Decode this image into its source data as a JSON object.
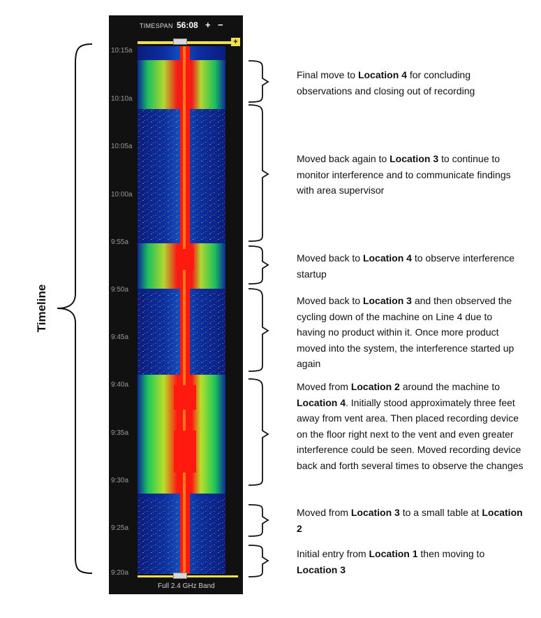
{
  "viewer": {
    "timespan_label": "TIMESPAN",
    "timespan_value": "56:08",
    "zoom_in": "+",
    "zoom_out": "−",
    "expand_marker": "+",
    "band_label": "Full 2.4 GHz Band",
    "time_ticks": [
      "10:15a",
      "10:10a",
      "10:05a",
      "10:00a",
      "9:55a",
      "9:50a",
      "9:45a",
      "9:40a",
      "9:35a",
      "9:30a",
      "9:25a",
      "9:20a"
    ]
  },
  "timeline_label": "Timeline",
  "annotations": [
    {
      "parts": [
        [
          "Final move to ",
          false
        ],
        [
          "Location 4",
          true
        ],
        [
          " for concluding observations and closing out of recording",
          false
        ]
      ]
    },
    {
      "parts": [
        [
          "Moved back again to ",
          false
        ],
        [
          "Location 3",
          true
        ],
        [
          " to continue to monitor interference and to communicate findings with area supervisor",
          false
        ]
      ]
    },
    {
      "parts": [
        [
          "Moved back to ",
          false
        ],
        [
          "Location 4",
          true
        ],
        [
          " to observe interference startup",
          false
        ]
      ]
    },
    {
      "parts": [
        [
          "Moved back to ",
          false
        ],
        [
          "Location 3",
          true
        ],
        [
          " and then observed the cycling down of the machine on Line 4 due to having no product within it. Once more product moved into the system, the interference started up again",
          false
        ]
      ]
    },
    {
      "parts": [
        [
          "Moved from ",
          false
        ],
        [
          "Location 2",
          true
        ],
        [
          " around the machine to ",
          false
        ],
        [
          "Location 4",
          true
        ],
        [
          ". Initially stood approximately three feet away from vent area. Then placed recording device on the floor right next to the vent and even greater interference could be seen. Moved recording device back and forth several times to observe the changes",
          false
        ]
      ]
    },
    {
      "parts": [
        [
          "Moved from ",
          false
        ],
        [
          "Location 3",
          true
        ],
        [
          " to a small table at ",
          false
        ],
        [
          "Location 2",
          true
        ],
        [
          "",
          false
        ]
      ]
    },
    {
      "parts": [
        [
          "Initial entry from ",
          false
        ],
        [
          "Location 1",
          true
        ],
        [
          " then moving to ",
          false
        ],
        [
          "Location 3",
          true
        ],
        [
          "",
          false
        ]
      ]
    }
  ],
  "colors": {
    "panel_bg": "#111111",
    "slider": "#f2e04c",
    "low": "#0b1f8a",
    "mid": "#1ec85a",
    "high": "#f0e020",
    "peak": "#ff1a10"
  }
}
